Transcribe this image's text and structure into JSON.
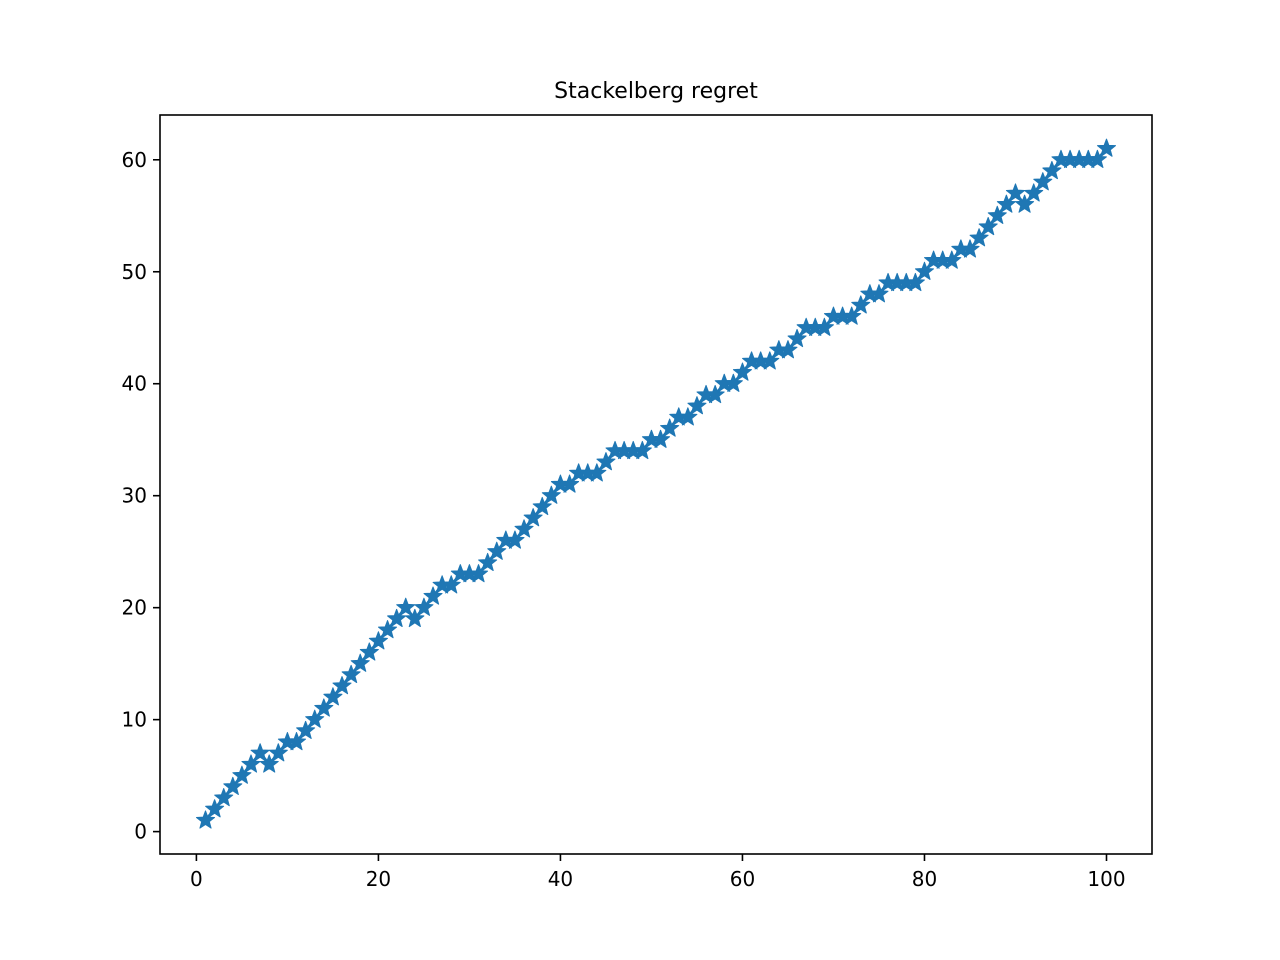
{
  "chart_data": {
    "type": "line",
    "title": "Stackelberg regret",
    "xlabel": "",
    "ylabel": "",
    "xlim": [
      -4,
      105
    ],
    "ylim": [
      -2,
      64
    ],
    "x_ticks": [
      0,
      20,
      40,
      60,
      80,
      100
    ],
    "y_ticks": [
      0,
      10,
      20,
      30,
      40,
      50,
      60
    ],
    "grid": false,
    "legend": "none",
    "marker": "star",
    "color": "#1f77b4",
    "series": [
      {
        "x": [
          1,
          2,
          3,
          4,
          5,
          6,
          7,
          8,
          9,
          10,
          11,
          12,
          13,
          14,
          15,
          16,
          17,
          18,
          19,
          20,
          21,
          22,
          23,
          24,
          25,
          26,
          27,
          28,
          29,
          30,
          31,
          32,
          33,
          34,
          35,
          36,
          37,
          38,
          39,
          40,
          41,
          42,
          43,
          44,
          45,
          46,
          47,
          48,
          49,
          50,
          51,
          52,
          53,
          54,
          55,
          56,
          57,
          58,
          59,
          60,
          61,
          62,
          63,
          64,
          65,
          66,
          67,
          68,
          69,
          70,
          71,
          72,
          73,
          74,
          75,
          76,
          77,
          78,
          79,
          80,
          81,
          82,
          83,
          84,
          85,
          86,
          87,
          88,
          89,
          90,
          91,
          92,
          93,
          94,
          95,
          96,
          97,
          98,
          99,
          100
        ],
        "values": [
          1,
          2,
          3,
          4,
          5,
          6,
          7,
          6,
          7,
          8,
          8,
          9,
          10,
          11,
          12,
          13,
          14,
          15,
          16,
          17,
          18,
          19,
          20,
          19,
          20,
          21,
          22,
          22,
          23,
          23,
          23,
          24,
          25,
          26,
          26,
          27,
          28,
          29,
          30,
          31,
          31,
          32,
          32,
          32,
          33,
          34,
          34,
          34,
          34,
          35,
          35,
          36,
          37,
          37,
          38,
          39,
          39,
          40,
          40,
          41,
          42,
          42,
          42,
          43,
          43,
          44,
          45,
          45,
          45,
          46,
          46,
          46,
          47,
          48,
          48,
          49,
          49,
          49,
          49,
          50,
          51,
          51,
          51,
          52,
          52,
          53,
          54,
          55,
          56,
          57,
          56,
          57,
          58,
          59,
          60,
          60,
          60,
          60,
          60,
          61
        ]
      }
    ]
  }
}
